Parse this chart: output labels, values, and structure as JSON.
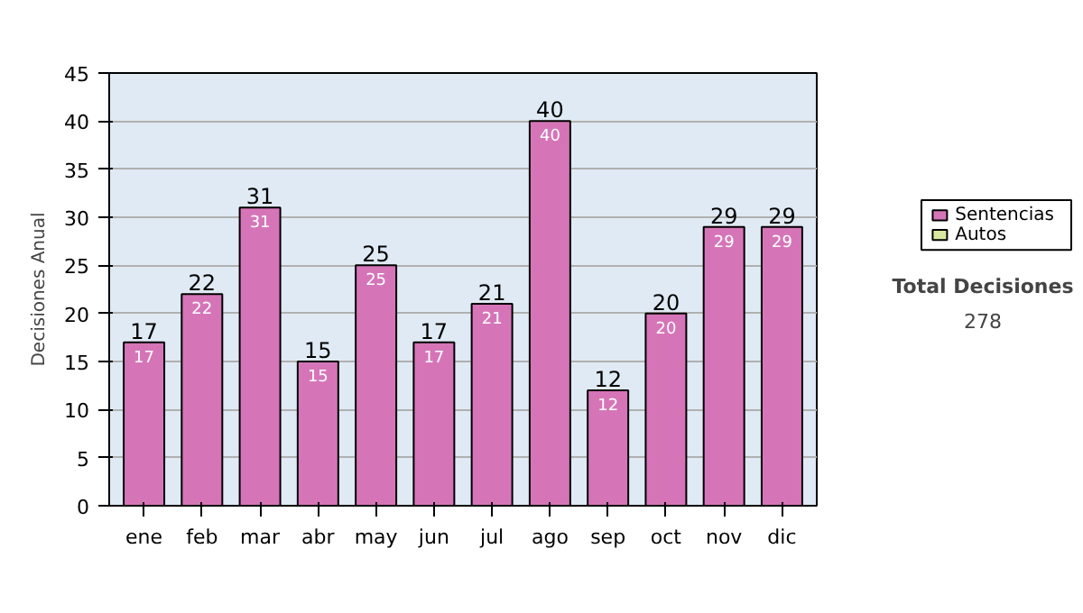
{
  "chart_data": {
    "type": "bar",
    "ylabel": "Decisiones Anual",
    "categories": [
      "ene",
      "feb",
      "mar",
      "abr",
      "may",
      "jun",
      "jul",
      "ago",
      "sep",
      "oct",
      "nov",
      "dic"
    ],
    "series": [
      {
        "name": "Sentencias",
        "color": "#d575b8",
        "values": [
          17,
          22,
          31,
          15,
          25,
          17,
          21,
          40,
          12,
          20,
          29,
          29
        ]
      },
      {
        "name": "Autos",
        "color": "#d8e8a0",
        "values": [
          null,
          null,
          null,
          null,
          null,
          null,
          null,
          null,
          null,
          null,
          null,
          null
        ]
      }
    ],
    "stacked": true,
    "data_labels": true,
    "totals": [
      "17",
      "22",
      "31",
      "15",
      "25",
      "17",
      "21",
      "40",
      "12",
      "20",
      "29",
      "29"
    ],
    "ylim": [
      0,
      45
    ],
    "yticks": [
      0,
      5,
      10,
      15,
      20,
      25,
      30,
      35,
      40,
      45
    ],
    "grid": "y",
    "legend": "right",
    "annotations": [
      "Total Decisiones",
      "278"
    ]
  }
}
